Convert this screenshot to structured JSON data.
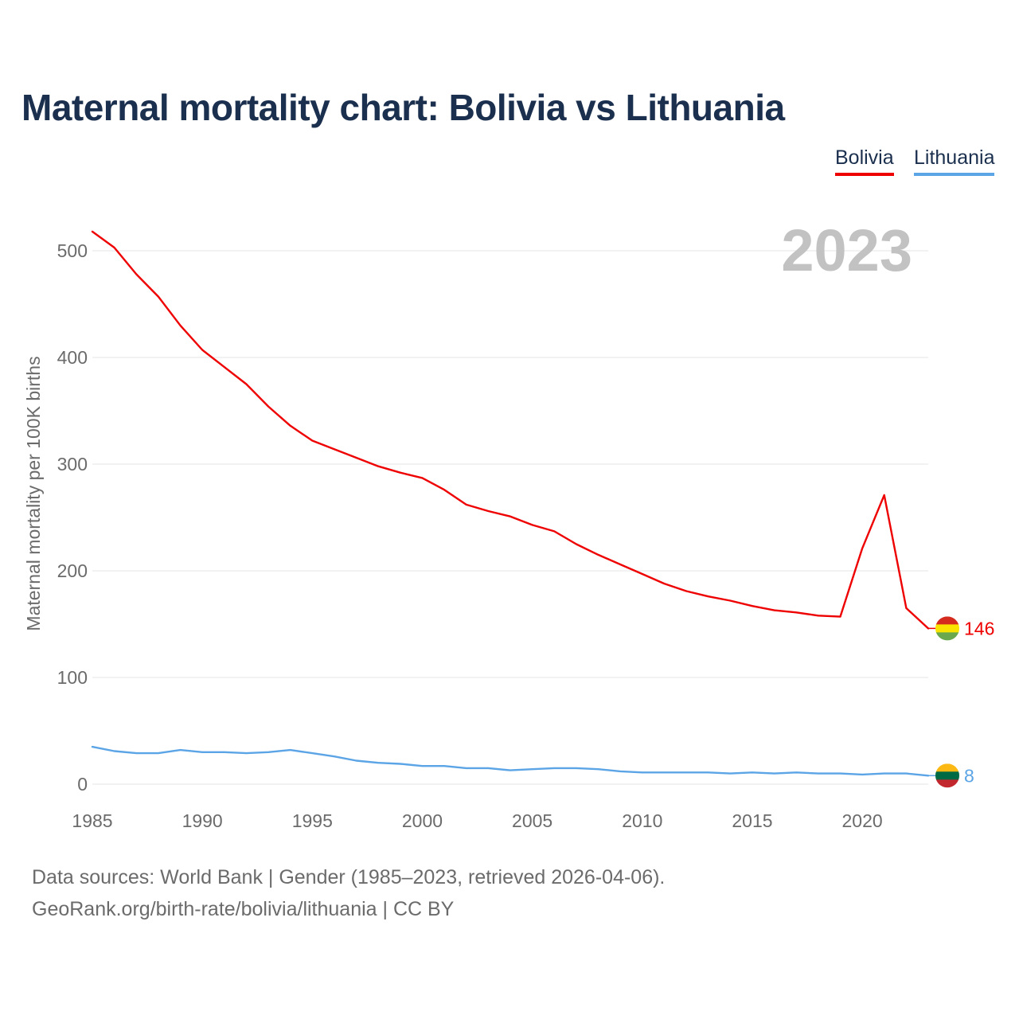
{
  "title": "Maternal mortality chart: Bolivia vs Lithuania",
  "sources": {
    "line1": "Data sources: World Bank | Gender (1985–2023, retrieved 2026-04-06).",
    "line2": "GeoRank.org/birth-rate/bolivia/lithuania | CC BY"
  },
  "chart_data": {
    "type": "line",
    "title": "Maternal mortality chart: Bolivia vs Lithuania",
    "ylabel": "Maternal mortality per 100K births",
    "xlabel": "",
    "year_label": "2023",
    "xlim": [
      1985,
      2023
    ],
    "ylim": [
      0,
      500
    ],
    "grid": true,
    "legend_position": "top-right",
    "x_ticks": [
      1985,
      1990,
      1995,
      2000,
      2005,
      2010,
      2015,
      2020
    ],
    "y_ticks": [
      0,
      100,
      200,
      300,
      400,
      500
    ],
    "x": [
      1985,
      1986,
      1987,
      1988,
      1989,
      1990,
      1991,
      1992,
      1993,
      1994,
      1995,
      1996,
      1997,
      1998,
      1999,
      2000,
      2001,
      2002,
      2003,
      2004,
      2005,
      2006,
      2007,
      2008,
      2009,
      2010,
      2011,
      2012,
      2013,
      2014,
      2015,
      2016,
      2017,
      2018,
      2019,
      2020,
      2021,
      2022,
      2023
    ],
    "series": [
      {
        "name": "Bolivia",
        "color": "#ee0000",
        "end_label": "146",
        "flag": [
          "#d52b1e",
          "#f9e300",
          "#6aa84f"
        ],
        "values": [
          518,
          503,
          478,
          457,
          430,
          407,
          391,
          375,
          354,
          336,
          322,
          314,
          306,
          298,
          292,
          287,
          276,
          262,
          256,
          251,
          243,
          237,
          225,
          215,
          206,
          197,
          188,
          181,
          176,
          172,
          167,
          163,
          161,
          158,
          157,
          221,
          271,
          165,
          146
        ]
      },
      {
        "name": "Lithuania",
        "color": "#5ba4e6",
        "end_label": "8",
        "flag": [
          "#fdb913",
          "#006a44",
          "#c1272d"
        ],
        "values": [
          35,
          31,
          29,
          29,
          32,
          30,
          30,
          29,
          30,
          32,
          29,
          26,
          22,
          20,
          19,
          17,
          17,
          15,
          15,
          13,
          14,
          15,
          15,
          14,
          12,
          11,
          11,
          11,
          11,
          10,
          11,
          10,
          11,
          10,
          10,
          9,
          10,
          10,
          8
        ]
      }
    ]
  }
}
